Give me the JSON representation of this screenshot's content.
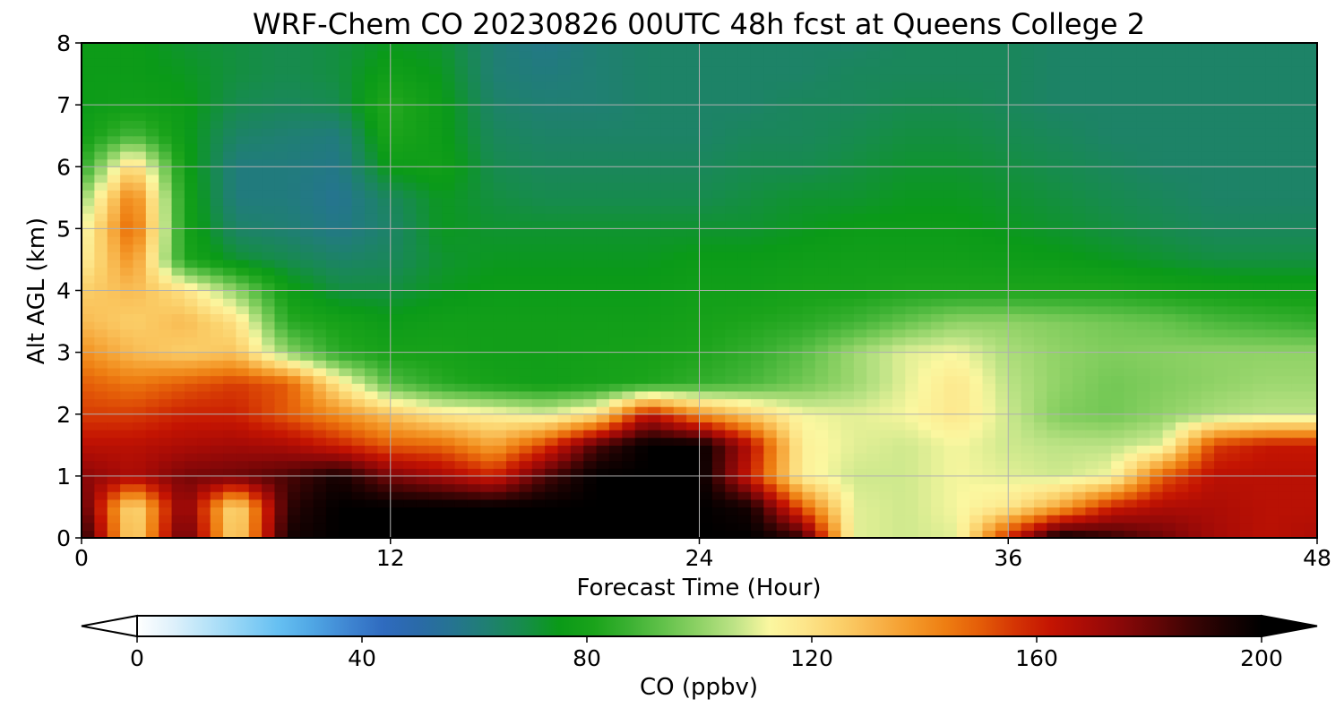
{
  "chart_data": {
    "type": "heatmap",
    "title": "WRF-Chem CO  20230826 00UTC 48h fcst at Queens College 2",
    "xlabel": "Forecast Time (Hour)",
    "ylabel": "Alt AGL (km)",
    "xlim": [
      0,
      48
    ],
    "ylim": [
      0,
      8
    ],
    "xticks": [
      "0",
      "12",
      "24",
      "36",
      "48"
    ],
    "yticks": [
      "0",
      "1",
      "2",
      "3",
      "4",
      "5",
      "6",
      "7",
      "8"
    ],
    "grid": true,
    "colorbar": {
      "label": "CO  (ppbv)",
      "min": 0,
      "max": 200,
      "ticks": [
        "0",
        "40",
        "80",
        "120",
        "160",
        "200"
      ],
      "extend": "both",
      "colors": [
        "#ffffff",
        "#dff1fb",
        "#b7e3f8",
        "#8ed2f5",
        "#66c0f2",
        "#4fa6e4",
        "#3f86d2",
        "#2f6bbf",
        "#2a6aa8",
        "#257490",
        "#1f8070",
        "#168c4a",
        "#0a9a18",
        "#1aa31a",
        "#3bb132",
        "#63c24b",
        "#8fd266",
        "#bde386",
        "#fbf7a0",
        "#fde58a",
        "#fbd06a",
        "#f8b54c",
        "#f49a2a",
        "#ee7e12",
        "#e45c08",
        "#d43404",
        "#c41402",
        "#a90c06",
        "#8a0808",
        "#650606",
        "#3c0404",
        "#1a0202",
        "#000000"
      ]
    },
    "times": [
      0,
      2,
      4,
      6,
      8,
      10,
      12,
      14,
      16,
      18,
      20,
      22,
      24,
      26,
      28,
      30,
      32,
      34,
      36,
      38,
      40,
      42,
      44,
      46,
      48
    ],
    "altitudes_km": [
      0,
      0.5,
      1,
      1.5,
      2,
      2.5,
      3,
      3.5,
      4,
      4.5,
      5,
      5.5,
      6,
      6.5,
      7,
      7.5,
      8
    ],
    "co_ppbv": [
      [
        195,
        120,
        185,
        120,
        195,
        200,
        200,
        200,
        200,
        200,
        200,
        200,
        200,
        200,
        190,
        110,
        108,
        110,
        160,
        200,
        190,
        180,
        170,
        165,
        168
      ],
      [
        185,
        118,
        178,
        118,
        190,
        200,
        200,
        200,
        200,
        200,
        200,
        200,
        200,
        195,
        150,
        110,
        108,
        112,
        118,
        135,
        160,
        168,
        168,
        165,
        165
      ],
      [
        175,
        168,
        178,
        180,
        185,
        195,
        178,
        170,
        160,
        185,
        200,
        200,
        200,
        160,
        115,
        108,
        108,
        112,
        110,
        108,
        112,
        150,
        165,
        165,
        165
      ],
      [
        165,
        165,
        168,
        170,
        168,
        160,
        150,
        148,
        135,
        155,
        185,
        200,
        200,
        165,
        115,
        110,
        108,
        112,
        108,
        106,
        106,
        110,
        155,
        162,
        162
      ],
      [
        155,
        155,
        160,
        160,
        150,
        140,
        128,
        118,
        115,
        110,
        120,
        165,
        140,
        125,
        112,
        110,
        112,
        118,
        108,
        98,
        96,
        100,
        104,
        106,
        106
      ],
      [
        150,
        145,
        150,
        155,
        150,
        118,
        92,
        84,
        80,
        78,
        80,
        82,
        86,
        90,
        96,
        102,
        110,
        118,
        106,
        100,
        96,
        98,
        100,
        102,
        102
      ],
      [
        140,
        130,
        125,
        128,
        100,
        84,
        80,
        80,
        78,
        78,
        79,
        80,
        82,
        86,
        92,
        102,
        110,
        112,
        104,
        100,
        98,
        99,
        100,
        100,
        100
      ],
      [
        130,
        125,
        130,
        120,
        84,
        80,
        76,
        78,
        78,
        78,
        78,
        78,
        80,
        82,
        84,
        88,
        94,
        100,
        100,
        98,
        96,
        94,
        90,
        88,
        86
      ],
      [
        125,
        130,
        120,
        100,
        78,
        70,
        70,
        74,
        76,
        76,
        76,
        76,
        78,
        78,
        80,
        80,
        82,
        82,
        82,
        82,
        82,
        80,
        79,
        78,
        78
      ],
      [
        115,
        140,
        82,
        72,
        68,
        64,
        66,
        72,
        74,
        74,
        74,
        74,
        76,
        76,
        77,
        78,
        78,
        78,
        77,
        76,
        74,
        72,
        70,
        70,
        70
      ],
      [
        110,
        150,
        80,
        64,
        62,
        58,
        64,
        74,
        72,
        72,
        72,
        72,
        72,
        72,
        74,
        76,
        76,
        76,
        74,
        72,
        70,
        68,
        66,
        66,
        66
      ],
      [
        100,
        145,
        80,
        60,
        60,
        56,
        66,
        74,
        70,
        68,
        68,
        68,
        68,
        70,
        72,
        72,
        74,
        74,
        72,
        70,
        68,
        66,
        64,
        64,
        64
      ],
      [
        84,
        125,
        78,
        60,
        60,
        58,
        76,
        78,
        68,
        66,
        66,
        66,
        66,
        68,
        68,
        70,
        72,
        72,
        70,
        68,
        66,
        64,
        64,
        64,
        64
      ],
      [
        78,
        90,
        76,
        64,
        62,
        60,
        82,
        76,
        66,
        64,
        64,
        64,
        64,
        66,
        66,
        68,
        70,
        70,
        68,
        66,
        64,
        64,
        64,
        64,
        64
      ],
      [
        76,
        78,
        76,
        68,
        66,
        68,
        84,
        76,
        64,
        62,
        62,
        64,
        64,
        64,
        66,
        66,
        68,
        68,
        66,
        64,
        64,
        64,
        64,
        64,
        64
      ],
      [
        76,
        76,
        74,
        70,
        68,
        70,
        78,
        74,
        62,
        60,
        62,
        64,
        64,
        64,
        64,
        66,
        66,
        66,
        66,
        64,
        64,
        64,
        64,
        64,
        64
      ],
      [
        76,
        76,
        72,
        70,
        68,
        70,
        74,
        72,
        62,
        58,
        62,
        64,
        64,
        64,
        64,
        64,
        66,
        66,
        66,
        64,
        64,
        64,
        64,
        64,
        64
      ]
    ]
  }
}
